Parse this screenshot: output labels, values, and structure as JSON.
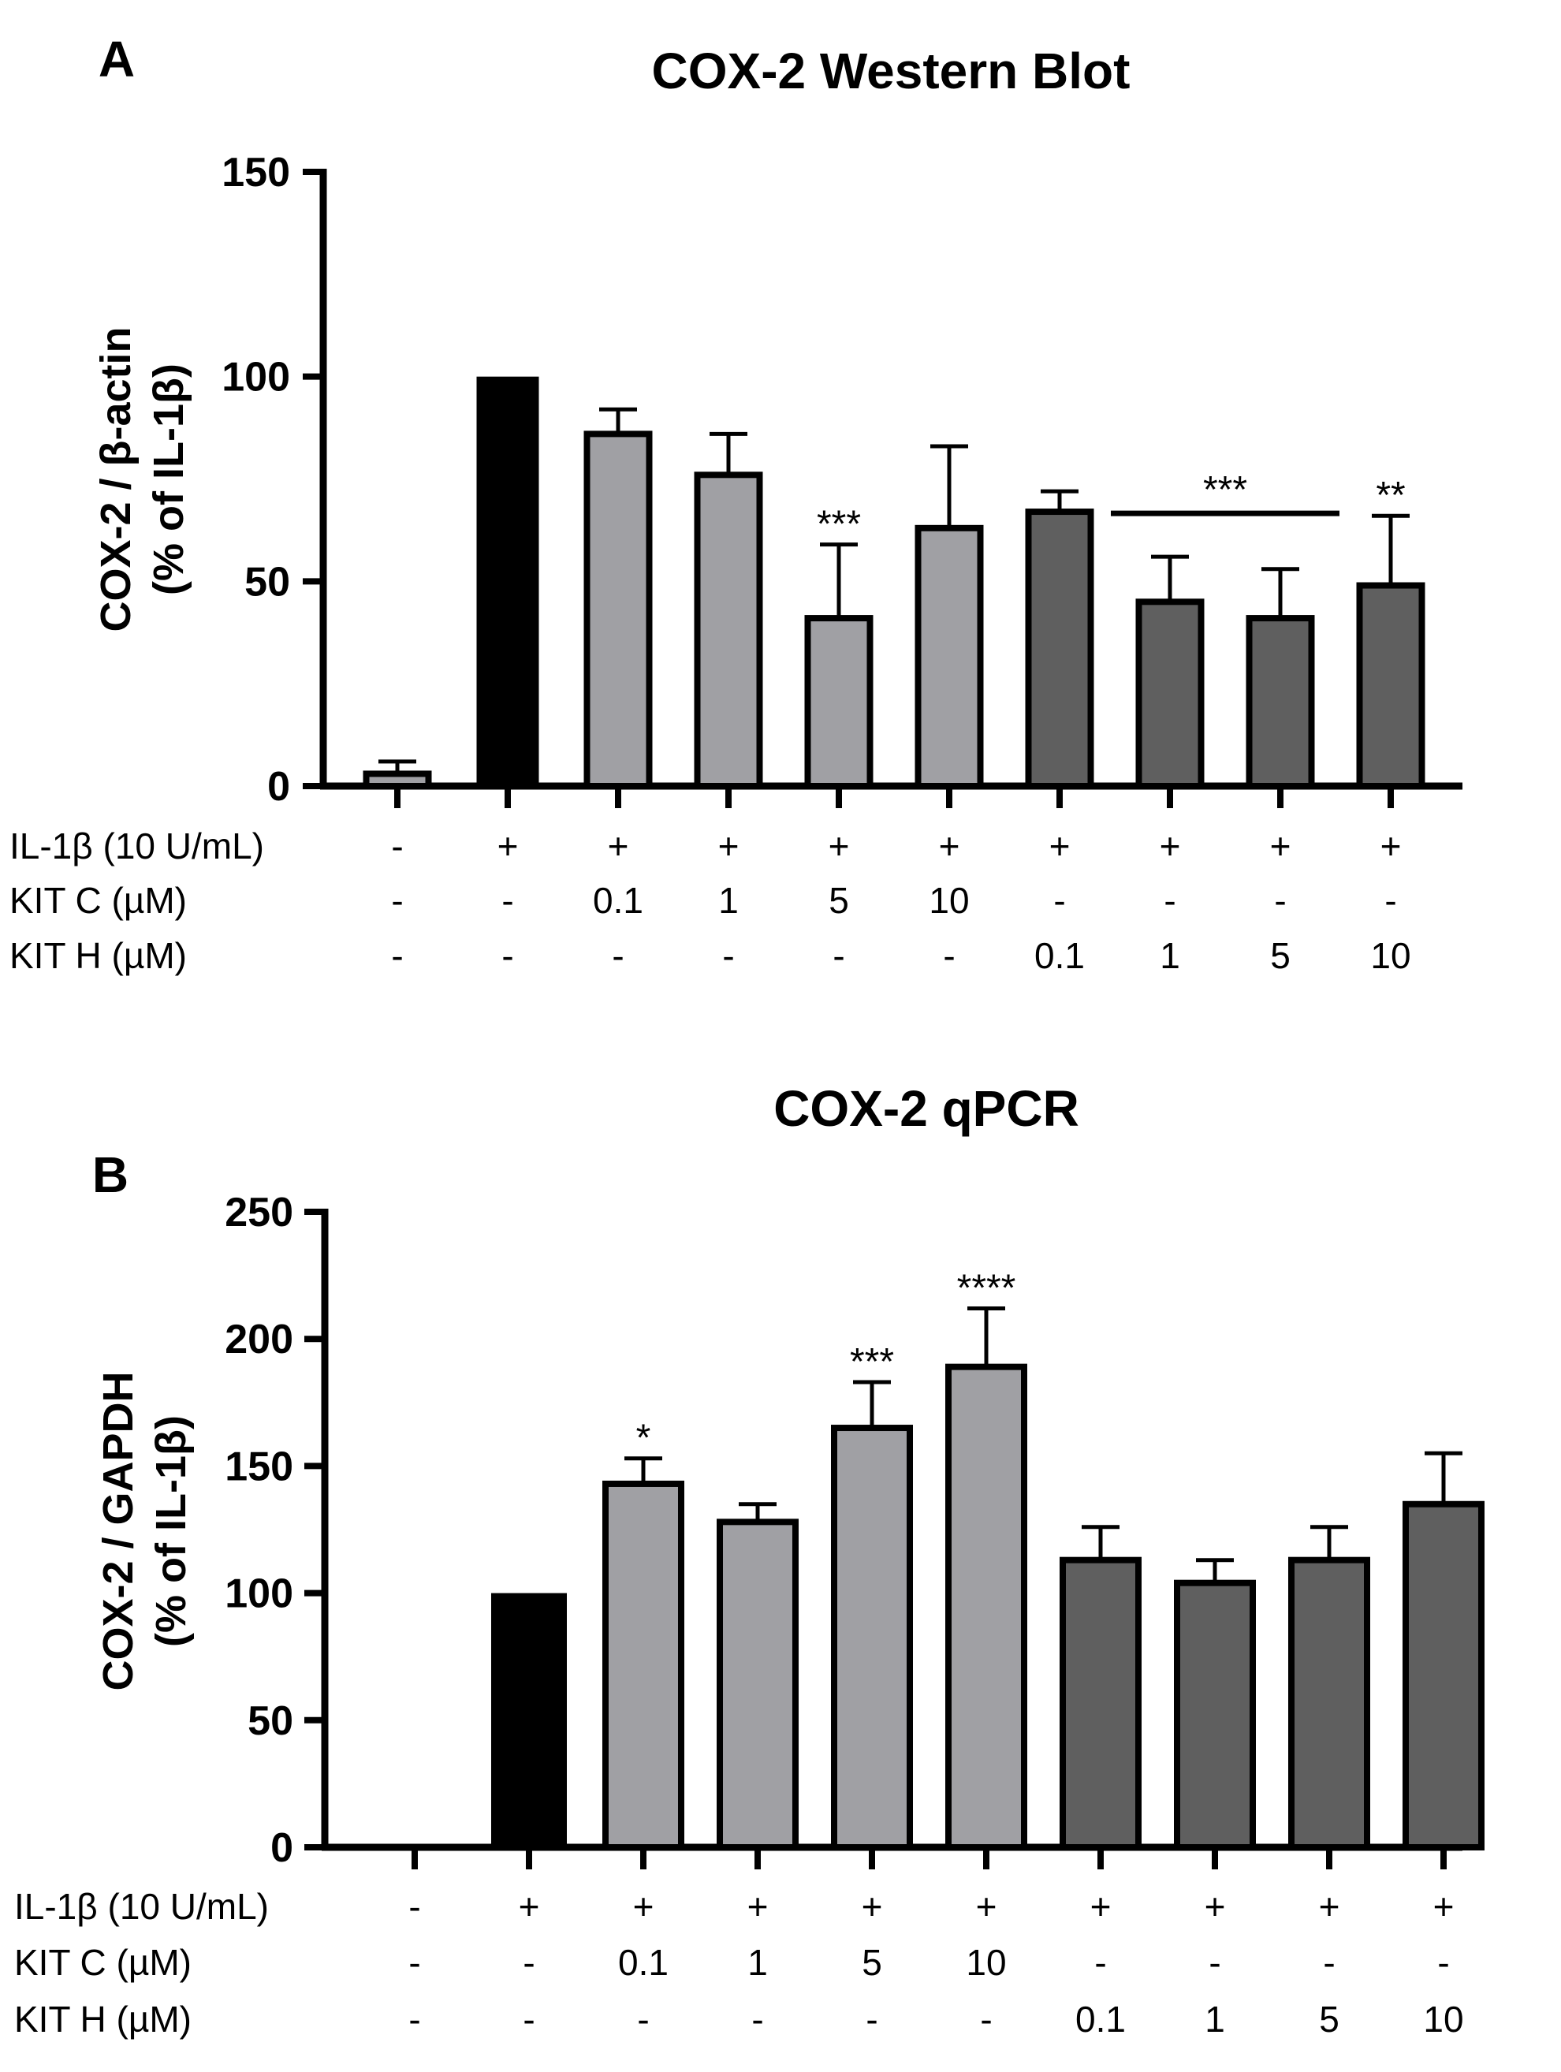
{
  "chart_data": [
    {
      "panel_label": "A",
      "type": "bar",
      "title": "COX-2 Western Blot",
      "ylabel_line1": "COX-2 / β-actin",
      "ylabel_line2": "(% of IL-1β)",
      "ylim": [
        0,
        150
      ],
      "yticks": [
        "0",
        "50",
        "100",
        "150"
      ],
      "values": [
        3,
        100,
        86,
        76,
        41,
        63,
        67,
        45,
        41,
        49
      ],
      "errors": [
        3,
        0,
        6,
        10,
        18,
        20,
        5,
        11,
        12,
        17
      ],
      "groups": [
        "control",
        "il1b",
        "kitc",
        "kitc",
        "kitc",
        "kitc",
        "kith",
        "kith",
        "kith",
        "kith"
      ],
      "colors": {
        "control": "#a0a0a4",
        "il1b": "#000000",
        "kitc": "#a0a0a4",
        "kith": "#5f5f5f"
      },
      "significance": [
        {
          "bar": 4,
          "text": "***"
        },
        {
          "bar": 9,
          "text": "**"
        },
        {
          "from_bar": 7,
          "to_bar": 8,
          "text": "***"
        }
      ],
      "conditions": [
        {
          "label": "IL-1β (10 U/mL)",
          "values": [
            "-",
            "+",
            "+",
            "+",
            "+",
            "+",
            "+",
            "+",
            "+",
            "+"
          ]
        },
        {
          "label": "KIT C (µM)",
          "values": [
            "-",
            "-",
            "0.1",
            "1",
            "5",
            "10",
            "-",
            "-",
            "-",
            "-"
          ]
        },
        {
          "label": "KIT H (µM)",
          "values": [
            "-",
            "-",
            "-",
            "-",
            "-",
            "-",
            "0.1",
            "1",
            "5",
            "10"
          ]
        }
      ]
    },
    {
      "panel_label": "B",
      "type": "bar",
      "title": "COX-2 qPCR",
      "ylabel_line1": "COX-2 / GAPDH",
      "ylabel_line2": "(% of IL-1β)",
      "ylim": [
        0,
        250
      ],
      "yticks": [
        "0",
        "50",
        "100",
        "150",
        "200",
        "250"
      ],
      "values": [
        0,
        100,
        143,
        128,
        165,
        189,
        113,
        104,
        113,
        135
      ],
      "errors": [
        0,
        0,
        10,
        7,
        18,
        23,
        13,
        9,
        13,
        20
      ],
      "groups": [
        "control",
        "il1b",
        "kitc",
        "kitc",
        "kitc",
        "kitc",
        "kith",
        "kith",
        "kith",
        "kith"
      ],
      "colors": {
        "control": "#a0a0a4",
        "il1b": "#000000",
        "kitc": "#a0a0a4",
        "kith": "#5f5f5f"
      },
      "significance": [
        {
          "bar": 2,
          "text": "*"
        },
        {
          "bar": 4,
          "text": "***"
        },
        {
          "bar": 5,
          "text": "****"
        }
      ],
      "conditions": [
        {
          "label": "IL-1β (10 U/mL)",
          "values": [
            "-",
            "+",
            "+",
            "+",
            "+",
            "+",
            "+",
            "+",
            "+",
            "+"
          ]
        },
        {
          "label": "KIT C (µM)",
          "values": [
            "-",
            "-",
            "0.1",
            "1",
            "5",
            "10",
            "-",
            "-",
            "-",
            "-"
          ]
        },
        {
          "label": "KIT H (µM)",
          "values": [
            "-",
            "-",
            "-",
            "-",
            "-",
            "-",
            "0.1",
            "1",
            "5",
            "10"
          ]
        }
      ]
    }
  ]
}
